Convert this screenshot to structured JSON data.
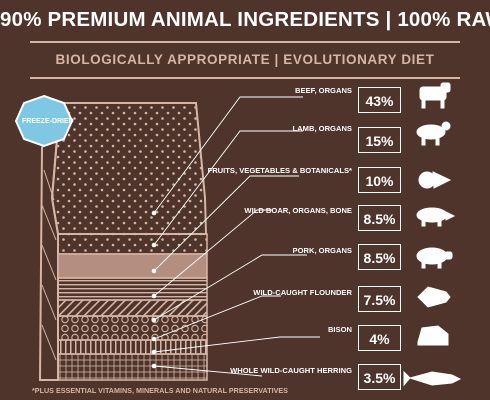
{
  "header": {
    "headline": "90% PREMIUM ANIMAL INGREDIENTS | 100% RAW",
    "subline": "BIOLOGICALLY APPROPRIATE | EVOLUTIONARY DIET"
  },
  "badge": {
    "text": "FREEZE-DRIED"
  },
  "ingredients": [
    {
      "label": "BEEF, ORGANS",
      "percent": "43%",
      "icon": "cow-icon"
    },
    {
      "label": "LAMB, ORGANS",
      "percent": "15%",
      "icon": "lamb-icon"
    },
    {
      "label": "FRUITS, VEGETABLES & BOTANICALS*",
      "percent": "10%",
      "icon": "vegetables-icon"
    },
    {
      "label": "WILD BOAR, ORGANS, BONE",
      "percent": "8.5%",
      "icon": "boar-icon"
    },
    {
      "label": "PORK, ORGANS",
      "percent": "8.5%",
      "icon": "pig-icon"
    },
    {
      "label": "WILD-CAUGHT FLOUNDER",
      "percent": "7.5%",
      "icon": "flounder-icon"
    },
    {
      "label": "BISON",
      "percent": "4%",
      "icon": "bison-icon"
    },
    {
      "label": "WHOLE WILD-CAUGHT HERRING",
      "percent": "3.5%",
      "icon": "herring-icon"
    }
  ],
  "footnote": "*PLUS ESSENTIAL VITAMINS, MINERALS AND NATURAL PRESERVATIVES",
  "colors": {
    "background": "#4e342a",
    "accent": "#d7b5a6",
    "text": "#ffffff",
    "badge": "#7ec8e3"
  }
}
